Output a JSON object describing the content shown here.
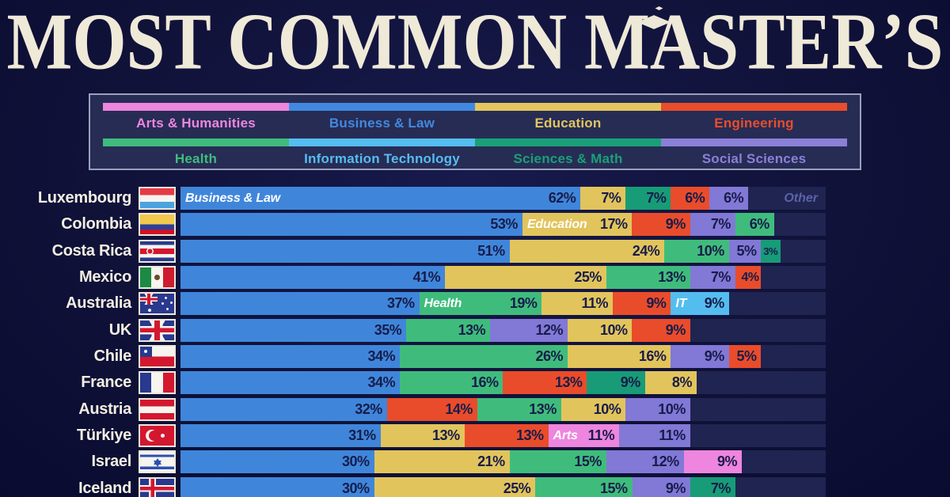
{
  "title": "MOST COMMON MASTER’S",
  "title_icon": "graduation-cap-icon",
  "legend": {
    "items": [
      {
        "id": "arts",
        "label": "Arts & Humanities",
        "color": "#ee85de"
      },
      {
        "id": "business",
        "label": "Business & Law",
        "color": "#4189e0"
      },
      {
        "id": "education",
        "label": "Education",
        "color": "#e3c65e"
      },
      {
        "id": "engineering",
        "label": "Engineering",
        "color": "#e94d2b"
      },
      {
        "id": "health",
        "label": "Health",
        "color": "#3fbc7c"
      },
      {
        "id": "it",
        "label": "Information Technology",
        "color": "#55bdf0"
      },
      {
        "id": "sciences",
        "label": "Sciences & Math",
        "color": "#1aa078"
      },
      {
        "id": "social",
        "label": "Social Sciences",
        "color": "#8a80d8"
      }
    ]
  },
  "chart_data": {
    "type": "bar",
    "stacked": true,
    "orientation": "horizontal",
    "unit": "%",
    "xlim": [
      0,
      100
    ],
    "other_label": "Other",
    "categories": [
      "Arts & Humanities",
      "Business & Law",
      "Education",
      "Engineering",
      "Health",
      "Information Technology",
      "Sciences & Math",
      "Social Sciences"
    ],
    "rows": [
      {
        "country": "Luxembourg",
        "flag": "flag-luxembourg",
        "show_other_label": true,
        "segments": [
          {
            "category": "business",
            "value": 62,
            "label": "Business & Law"
          },
          {
            "category": "education",
            "value": 7
          },
          {
            "category": "sciences",
            "value": 7
          },
          {
            "category": "engineering",
            "value": 6
          },
          {
            "category": "social",
            "value": 6
          }
        ]
      },
      {
        "country": "Colombia",
        "flag": "flag-colombia",
        "segments": [
          {
            "category": "business",
            "value": 53
          },
          {
            "category": "education",
            "value": 17,
            "label": "Education"
          },
          {
            "category": "engineering",
            "value": 9
          },
          {
            "category": "social",
            "value": 7
          },
          {
            "category": "health",
            "value": 6
          }
        ]
      },
      {
        "country": "Costa Rica",
        "flag": "flag-costa-rica",
        "segments": [
          {
            "category": "business",
            "value": 51
          },
          {
            "category": "education",
            "value": 24
          },
          {
            "category": "health",
            "value": 10
          },
          {
            "category": "social",
            "value": 5
          },
          {
            "category": "sciences",
            "value": 3
          }
        ]
      },
      {
        "country": "Mexico",
        "flag": "flag-mexico",
        "segments": [
          {
            "category": "business",
            "value": 41
          },
          {
            "category": "education",
            "value": 25
          },
          {
            "category": "health",
            "value": 13
          },
          {
            "category": "social",
            "value": 7
          },
          {
            "category": "engineering",
            "value": 4
          }
        ]
      },
      {
        "country": "Australia",
        "flag": "flag-australia",
        "segments": [
          {
            "category": "business",
            "value": 37
          },
          {
            "category": "health",
            "value": 19,
            "label": "Health"
          },
          {
            "category": "education",
            "value": 11
          },
          {
            "category": "engineering",
            "value": 9
          },
          {
            "category": "it",
            "value": 9,
            "label": "IT"
          }
        ]
      },
      {
        "country": "UK",
        "flag": "flag-uk",
        "segments": [
          {
            "category": "business",
            "value": 35
          },
          {
            "category": "health",
            "value": 13
          },
          {
            "category": "social",
            "value": 12
          },
          {
            "category": "education",
            "value": 10
          },
          {
            "category": "engineering",
            "value": 9
          }
        ]
      },
      {
        "country": "Chile",
        "flag": "flag-chile",
        "segments": [
          {
            "category": "business",
            "value": 34
          },
          {
            "category": "health",
            "value": 26
          },
          {
            "category": "education",
            "value": 16
          },
          {
            "category": "social",
            "value": 9
          },
          {
            "category": "engineering",
            "value": 5
          }
        ]
      },
      {
        "country": "France",
        "flag": "flag-france",
        "segments": [
          {
            "category": "business",
            "value": 34
          },
          {
            "category": "health",
            "value": 16
          },
          {
            "category": "engineering",
            "value": 13
          },
          {
            "category": "sciences",
            "value": 9
          },
          {
            "category": "education",
            "value": 8
          }
        ]
      },
      {
        "country": "Austria",
        "flag": "flag-austria",
        "segments": [
          {
            "category": "business",
            "value": 32
          },
          {
            "category": "engineering",
            "value": 14
          },
          {
            "category": "health",
            "value": 13
          },
          {
            "category": "education",
            "value": 10
          },
          {
            "category": "social",
            "value": 10
          }
        ]
      },
      {
        "country": "Türkiye",
        "flag": "flag-turkiye",
        "segments": [
          {
            "category": "business",
            "value": 31
          },
          {
            "category": "education",
            "value": 13
          },
          {
            "category": "engineering",
            "value": 13
          },
          {
            "category": "arts",
            "value": 11,
            "label": "Arts"
          },
          {
            "category": "social",
            "value": 11
          }
        ]
      },
      {
        "country": "Israel",
        "flag": "flag-israel",
        "segments": [
          {
            "category": "business",
            "value": 30
          },
          {
            "category": "education",
            "value": 21
          },
          {
            "category": "health",
            "value": 15
          },
          {
            "category": "social",
            "value": 12
          },
          {
            "category": "arts",
            "value": 9
          }
        ]
      },
      {
        "country": "Iceland",
        "flag": "flag-iceland",
        "segments": [
          {
            "category": "business",
            "value": 30
          },
          {
            "category": "education",
            "value": 25
          },
          {
            "category": "health",
            "value": 15
          },
          {
            "category": "social",
            "value": 9
          },
          {
            "category": "sciences",
            "value": 7
          }
        ]
      }
    ]
  },
  "colors": {
    "arts": "#ee85de",
    "business": "#3f86db",
    "education": "#e2c45c",
    "engineering": "#e94c2b",
    "health": "#3fbc7c",
    "it": "#54bdf0",
    "sciences": "#179c77",
    "social": "#8278d6",
    "background": "#101239",
    "track": "#1f2451",
    "percent_text": "#171c4a",
    "country_text": "#f2eee2",
    "title_text": "#efe9d8",
    "other_text": "#5b63a6",
    "legend_bg": "#272c55",
    "legend_border": "#9aa0bb"
  }
}
